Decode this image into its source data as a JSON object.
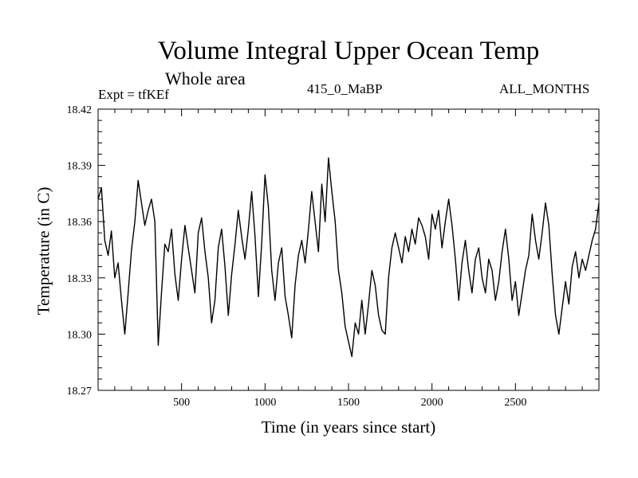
{
  "chart_data": {
    "type": "line",
    "title": "Volume Integral Upper Ocean Temp",
    "subtitle": "Whole area",
    "annotations": {
      "left": "Expt = tfKEf",
      "center": "415_0_MaBP",
      "right": "ALL_MONTHS"
    },
    "xlabel": "Time (in years since start)",
    "ylabel": "Temperature (in C)",
    "xlim": [
      0,
      3000
    ],
    "ylim": [
      18.27,
      18.42
    ],
    "xticks": [
      500,
      1000,
      1500,
      2000,
      2500
    ],
    "yticks": [
      18.27,
      18.3,
      18.33,
      18.36,
      18.39,
      18.42
    ],
    "ytick_labels": [
      "18.27",
      "18.30",
      "18.33",
      "18.36",
      "18.39",
      "18.42"
    ],
    "grid": false,
    "series": [
      {
        "values_note_x_step": 20,
        "x": [
          0,
          20,
          40,
          60,
          80,
          100,
          120,
          140,
          160,
          180,
          200,
          220,
          240,
          260,
          280,
          300,
          320,
          340,
          360,
          380,
          400,
          420,
          440,
          460,
          480,
          500,
          520,
          540,
          560,
          580,
          600,
          620,
          640,
          660,
          680,
          700,
          720,
          740,
          760,
          780,
          800,
          820,
          840,
          860,
          880,
          900,
          920,
          940,
          960,
          980,
          1000,
          1020,
          1040,
          1060,
          1080,
          1100,
          1120,
          1140,
          1160,
          1180,
          1200,
          1220,
          1240,
          1260,
          1280,
          1300,
          1320,
          1340,
          1360,
          1380,
          1400,
          1420,
          1440,
          1460,
          1480,
          1500,
          1520,
          1540,
          1560,
          1580,
          1600,
          1620,
          1640,
          1660,
          1680,
          1700,
          1720,
          1740,
          1760,
          1780,
          1800,
          1820,
          1840,
          1860,
          1880,
          1900,
          1920,
          1940,
          1960,
          1980,
          2000,
          2020,
          2040,
          2060,
          2080,
          2100,
          2120,
          2140,
          2160,
          2180,
          2200,
          2220,
          2240,
          2260,
          2280,
          2300,
          2320,
          2340,
          2360,
          2380,
          2400,
          2420,
          2440,
          2460,
          2480,
          2500,
          2520,
          2540,
          2560,
          2580,
          2600,
          2620,
          2640,
          2660,
          2680,
          2700,
          2720,
          2740,
          2760,
          2780,
          2800,
          2820,
          2840,
          2860,
          2880,
          2900,
          2920,
          2940,
          2960,
          2980,
          3000
        ],
        "y": [
          18.372,
          18.378,
          18.35,
          18.342,
          18.355,
          18.33,
          18.338,
          18.318,
          18.3,
          18.322,
          18.345,
          18.36,
          18.382,
          18.37,
          18.358,
          18.366,
          18.372,
          18.36,
          18.294,
          18.322,
          18.348,
          18.344,
          18.356,
          18.332,
          18.318,
          18.34,
          18.358,
          18.346,
          18.334,
          18.322,
          18.354,
          18.362,
          18.344,
          18.33,
          18.306,
          18.318,
          18.346,
          18.356,
          18.336,
          18.31,
          18.332,
          18.348,
          18.366,
          18.352,
          18.34,
          18.356,
          18.376,
          18.352,
          18.32,
          18.348,
          18.385,
          18.368,
          18.334,
          18.318,
          18.338,
          18.346,
          18.32,
          18.31,
          18.298,
          18.326,
          18.342,
          18.35,
          18.338,
          18.356,
          18.376,
          18.36,
          18.344,
          18.38,
          18.36,
          18.394,
          18.376,
          18.36,
          18.334,
          18.322,
          18.304,
          18.296,
          18.288,
          18.306,
          18.3,
          18.318,
          18.3,
          18.316,
          18.334,
          18.326,
          18.31,
          18.302,
          18.3,
          18.33,
          18.346,
          18.354,
          18.346,
          18.338,
          18.352,
          18.344,
          18.356,
          18.348,
          18.362,
          18.358,
          18.352,
          18.34,
          18.364,
          18.356,
          18.366,
          18.346,
          18.36,
          18.372,
          18.358,
          18.34,
          18.318,
          18.338,
          18.35,
          18.334,
          18.322,
          18.34,
          18.346,
          18.33,
          18.322,
          18.34,
          18.334,
          18.318,
          18.328,
          18.344,
          18.356,
          18.34,
          18.318,
          18.328,
          18.31,
          18.322,
          18.334,
          18.342,
          18.364,
          18.35,
          18.34,
          18.354,
          18.37,
          18.358,
          18.332,
          18.31,
          18.3,
          18.314,
          18.328,
          18.316,
          18.336,
          18.344,
          18.33,
          18.34,
          18.334,
          18.342,
          18.35,
          18.356,
          18.37
        ]
      }
    ],
    "line_color": "#000000"
  }
}
